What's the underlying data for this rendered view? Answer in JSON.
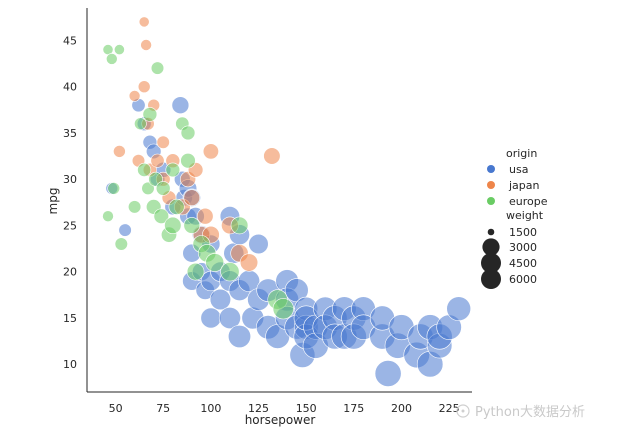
{
  "chart_data": {
    "type": "scatter",
    "xlabel": "horsepower",
    "ylabel": "mpg",
    "xlim": [
      35,
      237
    ],
    "ylim": [
      7,
      48.5
    ],
    "xticks": [
      50,
      75,
      100,
      125,
      150,
      175,
      200,
      225
    ],
    "yticks": [
      10,
      15,
      20,
      25,
      30,
      35,
      40,
      45
    ],
    "grid": false,
    "legend": {
      "placement": "right",
      "hue_title": "origin",
      "size_title": "weight",
      "hue_entries": [
        {
          "label": "usa",
          "color": "#4878cf"
        },
        {
          "label": "japan",
          "color": "#ee854a"
        },
        {
          "label": "europe",
          "color": "#6acc64"
        }
      ],
      "size_entries": [
        {
          "label": "1500",
          "value": 1500
        },
        {
          "label": "3000",
          "value": 3000
        },
        {
          "label": "4500",
          "value": 4500
        },
        {
          "label": "6000",
          "value": 6000
        }
      ]
    },
    "series": [
      {
        "name": "usa",
        "color": "#4878cf",
        "points": [
          [
            48,
            29,
            2000
          ],
          [
            55,
            24.5,
            2100
          ],
          [
            62,
            38,
            2200
          ],
          [
            65,
            36,
            2300
          ],
          [
            68,
            34,
            2300
          ],
          [
            70,
            33,
            2400
          ],
          [
            72,
            30,
            2400
          ],
          [
            75,
            31,
            2500
          ],
          [
            80,
            27,
            2600
          ],
          [
            84,
            38,
            2800
          ],
          [
            85,
            30,
            2600
          ],
          [
            86,
            28,
            2700
          ],
          [
            88,
            26,
            2700
          ],
          [
            88,
            29,
            2900
          ],
          [
            90,
            28,
            2900
          ],
          [
            90,
            22,
            3000
          ],
          [
            90,
            19,
            3100
          ],
          [
            92,
            26,
            2900
          ],
          [
            95,
            24,
            3000
          ],
          [
            95,
            20,
            3000
          ],
          [
            97,
            18,
            3100
          ],
          [
            100,
            23,
            3000
          ],
          [
            100,
            19,
            3300
          ],
          [
            100,
            15,
            3400
          ],
          [
            105,
            20,
            3300
          ],
          [
            105,
            17,
            3500
          ],
          [
            110,
            19,
            3500
          ],
          [
            110,
            26,
            3300
          ],
          [
            110,
            15,
            3700
          ],
          [
            112,
            22,
            3400
          ],
          [
            115,
            24,
            3400
          ],
          [
            115,
            18,
            3600
          ],
          [
            115,
            13,
            3900
          ],
          [
            120,
            19,
            3700
          ],
          [
            122,
            15,
            3800
          ],
          [
            125,
            23,
            3300
          ],
          [
            125,
            17,
            3800
          ],
          [
            130,
            18,
            4000
          ],
          [
            130,
            14,
            4200
          ],
          [
            135,
            13,
            4300
          ],
          [
            140,
            19,
            4000
          ],
          [
            140,
            17,
            4100
          ],
          [
            140,
            15,
            4200
          ],
          [
            145,
            18,
            4100
          ],
          [
            145,
            14,
            4300
          ],
          [
            148,
            11,
            4600
          ],
          [
            150,
            16,
            4100
          ],
          [
            150,
            14,
            4300
          ],
          [
            150,
            13,
            4500
          ],
          [
            150,
            15,
            4400
          ],
          [
            155,
            14,
            4400
          ],
          [
            155,
            12,
            4700
          ],
          [
            160,
            16,
            4200
          ],
          [
            160,
            14,
            4500
          ],
          [
            165,
            15,
            4500
          ],
          [
            165,
            13,
            4600
          ],
          [
            170,
            16,
            4300
          ],
          [
            170,
            13,
            4700
          ],
          [
            175,
            15,
            4400
          ],
          [
            175,
            13,
            4700
          ],
          [
            180,
            16,
            4300
          ],
          [
            180,
            14,
            4500
          ],
          [
            190,
            13,
            4700
          ],
          [
            190,
            15,
            4400
          ],
          [
            193,
            9,
            4900
          ],
          [
            198,
            12,
            4700
          ],
          [
            200,
            14,
            4600
          ],
          [
            208,
            11,
            4800
          ],
          [
            210,
            13,
            4700
          ],
          [
            215,
            10,
            4800
          ],
          [
            215,
            14,
            4600
          ],
          [
            220,
            12,
            4500
          ],
          [
            220,
            13,
            4700
          ],
          [
            225,
            14,
            4500
          ],
          [
            230,
            16,
            4300
          ]
        ]
      },
      {
        "name": "japan",
        "color": "#ee854a",
        "points": [
          [
            52,
            33,
            2000
          ],
          [
            60,
            39,
            1900
          ],
          [
            62,
            32,
            2100
          ],
          [
            65,
            47,
            1800
          ],
          [
            65,
            40,
            2000
          ],
          [
            66,
            44.5,
            1900
          ],
          [
            67,
            36,
            2100
          ],
          [
            68,
            31,
            2200
          ],
          [
            70,
            38,
            2000
          ],
          [
            72,
            32,
            2200
          ],
          [
            75,
            30,
            2300
          ],
          [
            75,
            34,
            2100
          ],
          [
            78,
            28,
            2300
          ],
          [
            80,
            32,
            2300
          ],
          [
            85,
            27,
            2600
          ],
          [
            88,
            30,
            2500
          ],
          [
            90,
            28,
            2600
          ],
          [
            92,
            31,
            2400
          ],
          [
            95,
            24,
            2700
          ],
          [
            97,
            26,
            2600
          ],
          [
            100,
            33,
            2500
          ],
          [
            100,
            24,
            2800
          ],
          [
            110,
            25,
            2800
          ],
          [
            115,
            22,
            2900
          ],
          [
            120,
            21,
            2900
          ],
          [
            132,
            32.5,
            2700
          ]
        ]
      },
      {
        "name": "europe",
        "color": "#6acc64",
        "points": [
          [
            46,
            26,
            1900
          ],
          [
            46,
            44,
            1800
          ],
          [
            48,
            43,
            1900
          ],
          [
            49,
            29,
            2000
          ],
          [
            52,
            44,
            1800
          ],
          [
            53,
            23,
            2100
          ],
          [
            60,
            27,
            2100
          ],
          [
            63,
            36,
            2000
          ],
          [
            65,
            31,
            2200
          ],
          [
            67,
            29,
            2100
          ],
          [
            68,
            37,
            2300
          ],
          [
            70,
            27,
            2400
          ],
          [
            71,
            30,
            2300
          ],
          [
            72,
            42,
            2100
          ],
          [
            74,
            26,
            2400
          ],
          [
            75,
            29,
            2300
          ],
          [
            78,
            24,
            2500
          ],
          [
            80,
            31,
            2300
          ],
          [
            80,
            25,
            2700
          ],
          [
            82,
            27,
            2500
          ],
          [
            85,
            36,
            2200
          ],
          [
            88,
            32,
            2400
          ],
          [
            88,
            35,
            2300
          ],
          [
            90,
            25,
            2600
          ],
          [
            92,
            20,
            2800
          ],
          [
            95,
            23,
            2800
          ],
          [
            98,
            22,
            2900
          ],
          [
            102,
            21,
            3000
          ],
          [
            110,
            20,
            3100
          ],
          [
            115,
            25,
            2800
          ],
          [
            135,
            17,
            3300
          ],
          [
            138,
            16,
            3500
          ]
        ]
      }
    ]
  },
  "watermark": {
    "text": "Python大数据分析"
  }
}
